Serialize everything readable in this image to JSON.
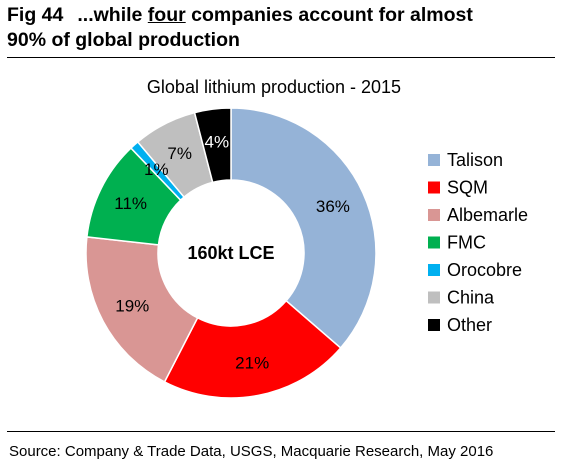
{
  "header": {
    "fig_number": "Fig 44",
    "title_before": "...while ",
    "title_underlined": "four",
    "title_after": " companies account for almost",
    "title_line2": "90% of global production"
  },
  "chart_data": {
    "type": "pie",
    "variant": "donut",
    "title": "Global lithium production - 2015",
    "center_label": "160kt LCE",
    "categories": [
      "Talison",
      "SQM",
      "Albemarle",
      "FMC",
      "Orocobre",
      "China",
      "Other"
    ],
    "values": [
      36,
      21,
      19,
      11,
      1,
      7,
      4
    ],
    "labels": [
      "36%",
      "21%",
      "19%",
      "11%",
      "1%",
      "7%",
      "4%"
    ],
    "colors": [
      "#95b3d7",
      "#ff0000",
      "#d99694",
      "#00b050",
      "#00b0f0",
      "#bfbfbf",
      "#000000"
    ],
    "label_colors": [
      "#000000",
      "#000000",
      "#000000",
      "#000000",
      "#000000",
      "#000000",
      "#ffffff"
    ],
    "legend_position": "right",
    "start_angle": "12 o'clock, clockwise"
  },
  "source": "Source: Company & Trade Data, USGS, Macquarie Research, May 2016"
}
